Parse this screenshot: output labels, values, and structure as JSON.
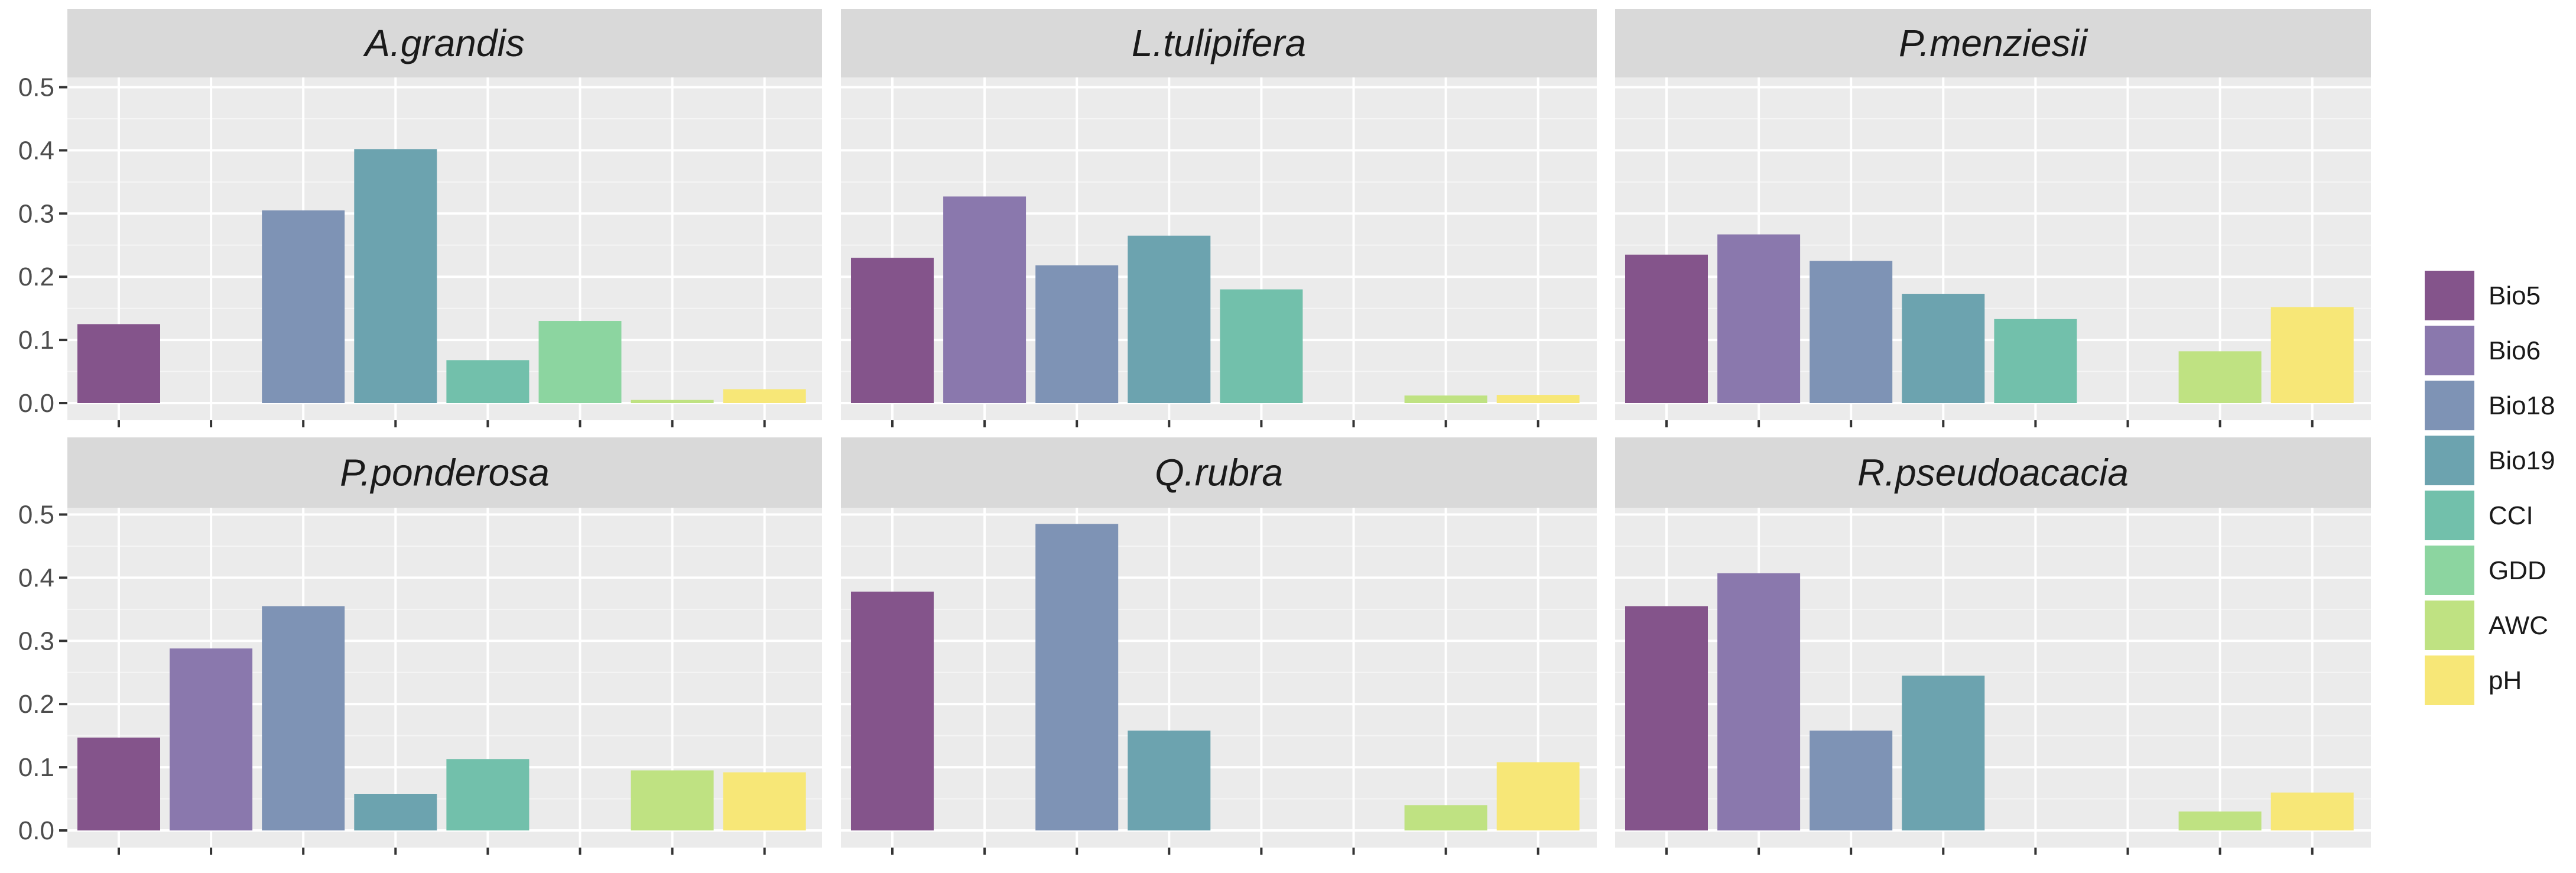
{
  "chart_data": {
    "type": "bar",
    "facet_layout": "2 rows x 3 columns",
    "ylim": [
      0,
      0.55
    ],
    "yticks": [
      "0.0",
      "0.1",
      "0.2",
      "0.3",
      "0.4",
      "0.5"
    ],
    "xlabel": "",
    "ylabel": "",
    "x_tick_labels_shown": false,
    "grid": true,
    "legend_position": "right",
    "categories": [
      "Bio5",
      "Bio6",
      "Bio18",
      "Bio19",
      "CCI",
      "GDD",
      "AWC",
      "pH"
    ],
    "colors": [
      "#84548b",
      "#8a78ad",
      "#7e93b5",
      "#6ca3af",
      "#72c0ab",
      "#8cd5a0",
      "#bfe282",
      "#f7e777"
    ],
    "panels": [
      {
        "title": "A.grandis",
        "values": [
          0.125,
          0,
          0.305,
          0.402,
          0.068,
          0.13,
          0.005,
          0.022
        ]
      },
      {
        "title": "L.tulipifera",
        "values": [
          0.23,
          0.327,
          0.218,
          0.265,
          0.18,
          0,
          0.012,
          0.013
        ]
      },
      {
        "title": "P.menziesii",
        "values": [
          0.235,
          0.267,
          0.225,
          0.173,
          0.133,
          0,
          0.082,
          0.152
        ]
      },
      {
        "title": "P.ponderosa",
        "values": [
          0.147,
          0.288,
          0.355,
          0.058,
          0.113,
          0,
          0.095,
          0.092
        ]
      },
      {
        "title": "Q.rubra",
        "values": [
          0.378,
          0,
          0.485,
          0.158,
          0,
          0,
          0.04,
          0.108
        ]
      },
      {
        "title": "R.pseudoacacia",
        "values": [
          0.355,
          0.407,
          0.158,
          0.245,
          0,
          0,
          0.03,
          0.06
        ]
      }
    ]
  }
}
